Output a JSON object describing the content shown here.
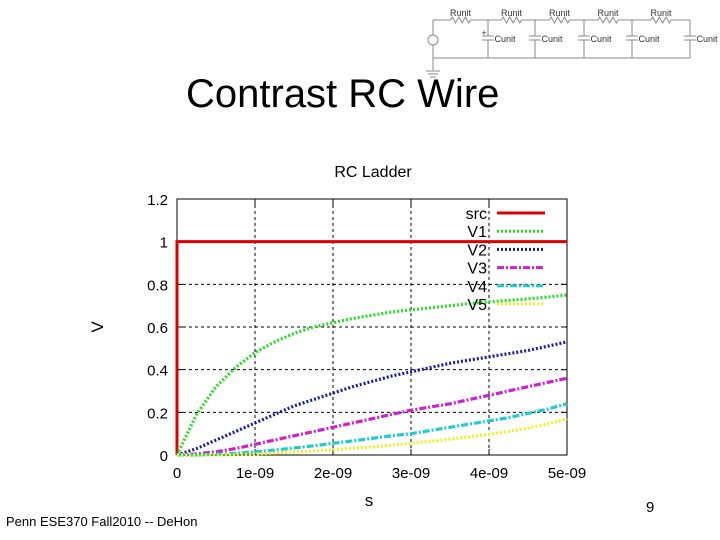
{
  "slide": {
    "title": "Contrast RC Wire",
    "footer": "Penn ESE370 Fall2010 -- DeHon",
    "page_number": "9"
  },
  "schematic": {
    "resistor_label": "Runit",
    "capacitor_label": "Cunit",
    "resistor_count": 5,
    "capacitor_count": 5,
    "source_polarity": "+"
  },
  "chart_data": {
    "type": "line",
    "title": "RC Ladder",
    "xlabel": "s",
    "ylabel": "V",
    "xlim": [
      0,
      5e-09
    ],
    "ylim": [
      0,
      1.2
    ],
    "xticks": [
      0,
      1e-09,
      2e-09,
      3e-09,
      4e-09,
      5e-09
    ],
    "xtick_labels": [
      "0",
      "1e-09",
      "2e-09",
      "3e-09",
      "4e-09",
      "5e-09"
    ],
    "yticks": [
      0,
      0.2,
      0.4,
      0.6,
      0.8,
      1,
      1.2
    ],
    "ytick_labels": [
      "0",
      "0.2",
      "0.4",
      "0.6",
      "0.8",
      "1",
      "1.2"
    ],
    "grid": "dashed",
    "legend_position": "top-right",
    "x": [
      0,
      2.5e-10,
      5e-10,
      7.5e-10,
      1e-09,
      1.25e-09,
      1.5e-09,
      1.75e-09,
      2e-09,
      2.25e-09,
      2.5e-09,
      2.75e-09,
      3e-09,
      3.25e-09,
      3.5e-09,
      3.75e-09,
      4e-09,
      4.25e-09,
      4.5e-09,
      4.75e-09,
      5e-09
    ],
    "series": [
      {
        "name": "src",
        "color": "#dd0000",
        "style": "solid",
        "values": [
          1,
          1,
          1,
          1,
          1,
          1,
          1,
          1,
          1,
          1,
          1,
          1,
          1,
          1,
          1,
          1,
          1,
          1,
          1,
          1,
          1
        ]
      },
      {
        "name": "V1",
        "color": "#22dd22",
        "style": "dotted",
        "values": [
          0,
          0.19,
          0.32,
          0.41,
          0.48,
          0.53,
          0.57,
          0.6,
          0.62,
          0.64,
          0.655,
          0.67,
          0.68,
          0.69,
          0.7,
          0.71,
          0.718,
          0.725,
          0.732,
          0.74,
          0.75
        ]
      },
      {
        "name": "V2",
        "color": "#1a1aaa",
        "style": "dotted",
        "values": [
          0,
          0.03,
          0.07,
          0.11,
          0.15,
          0.19,
          0.23,
          0.26,
          0.29,
          0.32,
          0.345,
          0.37,
          0.39,
          0.41,
          0.43,
          0.445,
          0.46,
          0.475,
          0.49,
          0.51,
          0.53
        ]
      },
      {
        "name": "V3",
        "color": "#cc22cc",
        "style": "dashdot",
        "values": [
          0,
          0.005,
          0.015,
          0.03,
          0.05,
          0.07,
          0.09,
          0.11,
          0.13,
          0.15,
          0.17,
          0.19,
          0.21,
          0.225,
          0.24,
          0.26,
          0.28,
          0.3,
          0.32,
          0.34,
          0.36
        ]
      },
      {
        "name": "V4",
        "color": "#22cccc",
        "style": "dashdot",
        "values": [
          0,
          0,
          0.003,
          0.008,
          0.015,
          0.023,
          0.033,
          0.043,
          0.055,
          0.066,
          0.078,
          0.09,
          0.1,
          0.115,
          0.13,
          0.145,
          0.16,
          0.175,
          0.195,
          0.215,
          0.24
        ]
      },
      {
        "name": "V5",
        "color": "#eeee22",
        "style": "dotted",
        "values": [
          0,
          0,
          0,
          0.002,
          0.005,
          0.009,
          0.014,
          0.019,
          0.025,
          0.031,
          0.038,
          0.046,
          0.055,
          0.064,
          0.074,
          0.085,
          0.097,
          0.11,
          0.126,
          0.145,
          0.17
        ]
      }
    ]
  }
}
